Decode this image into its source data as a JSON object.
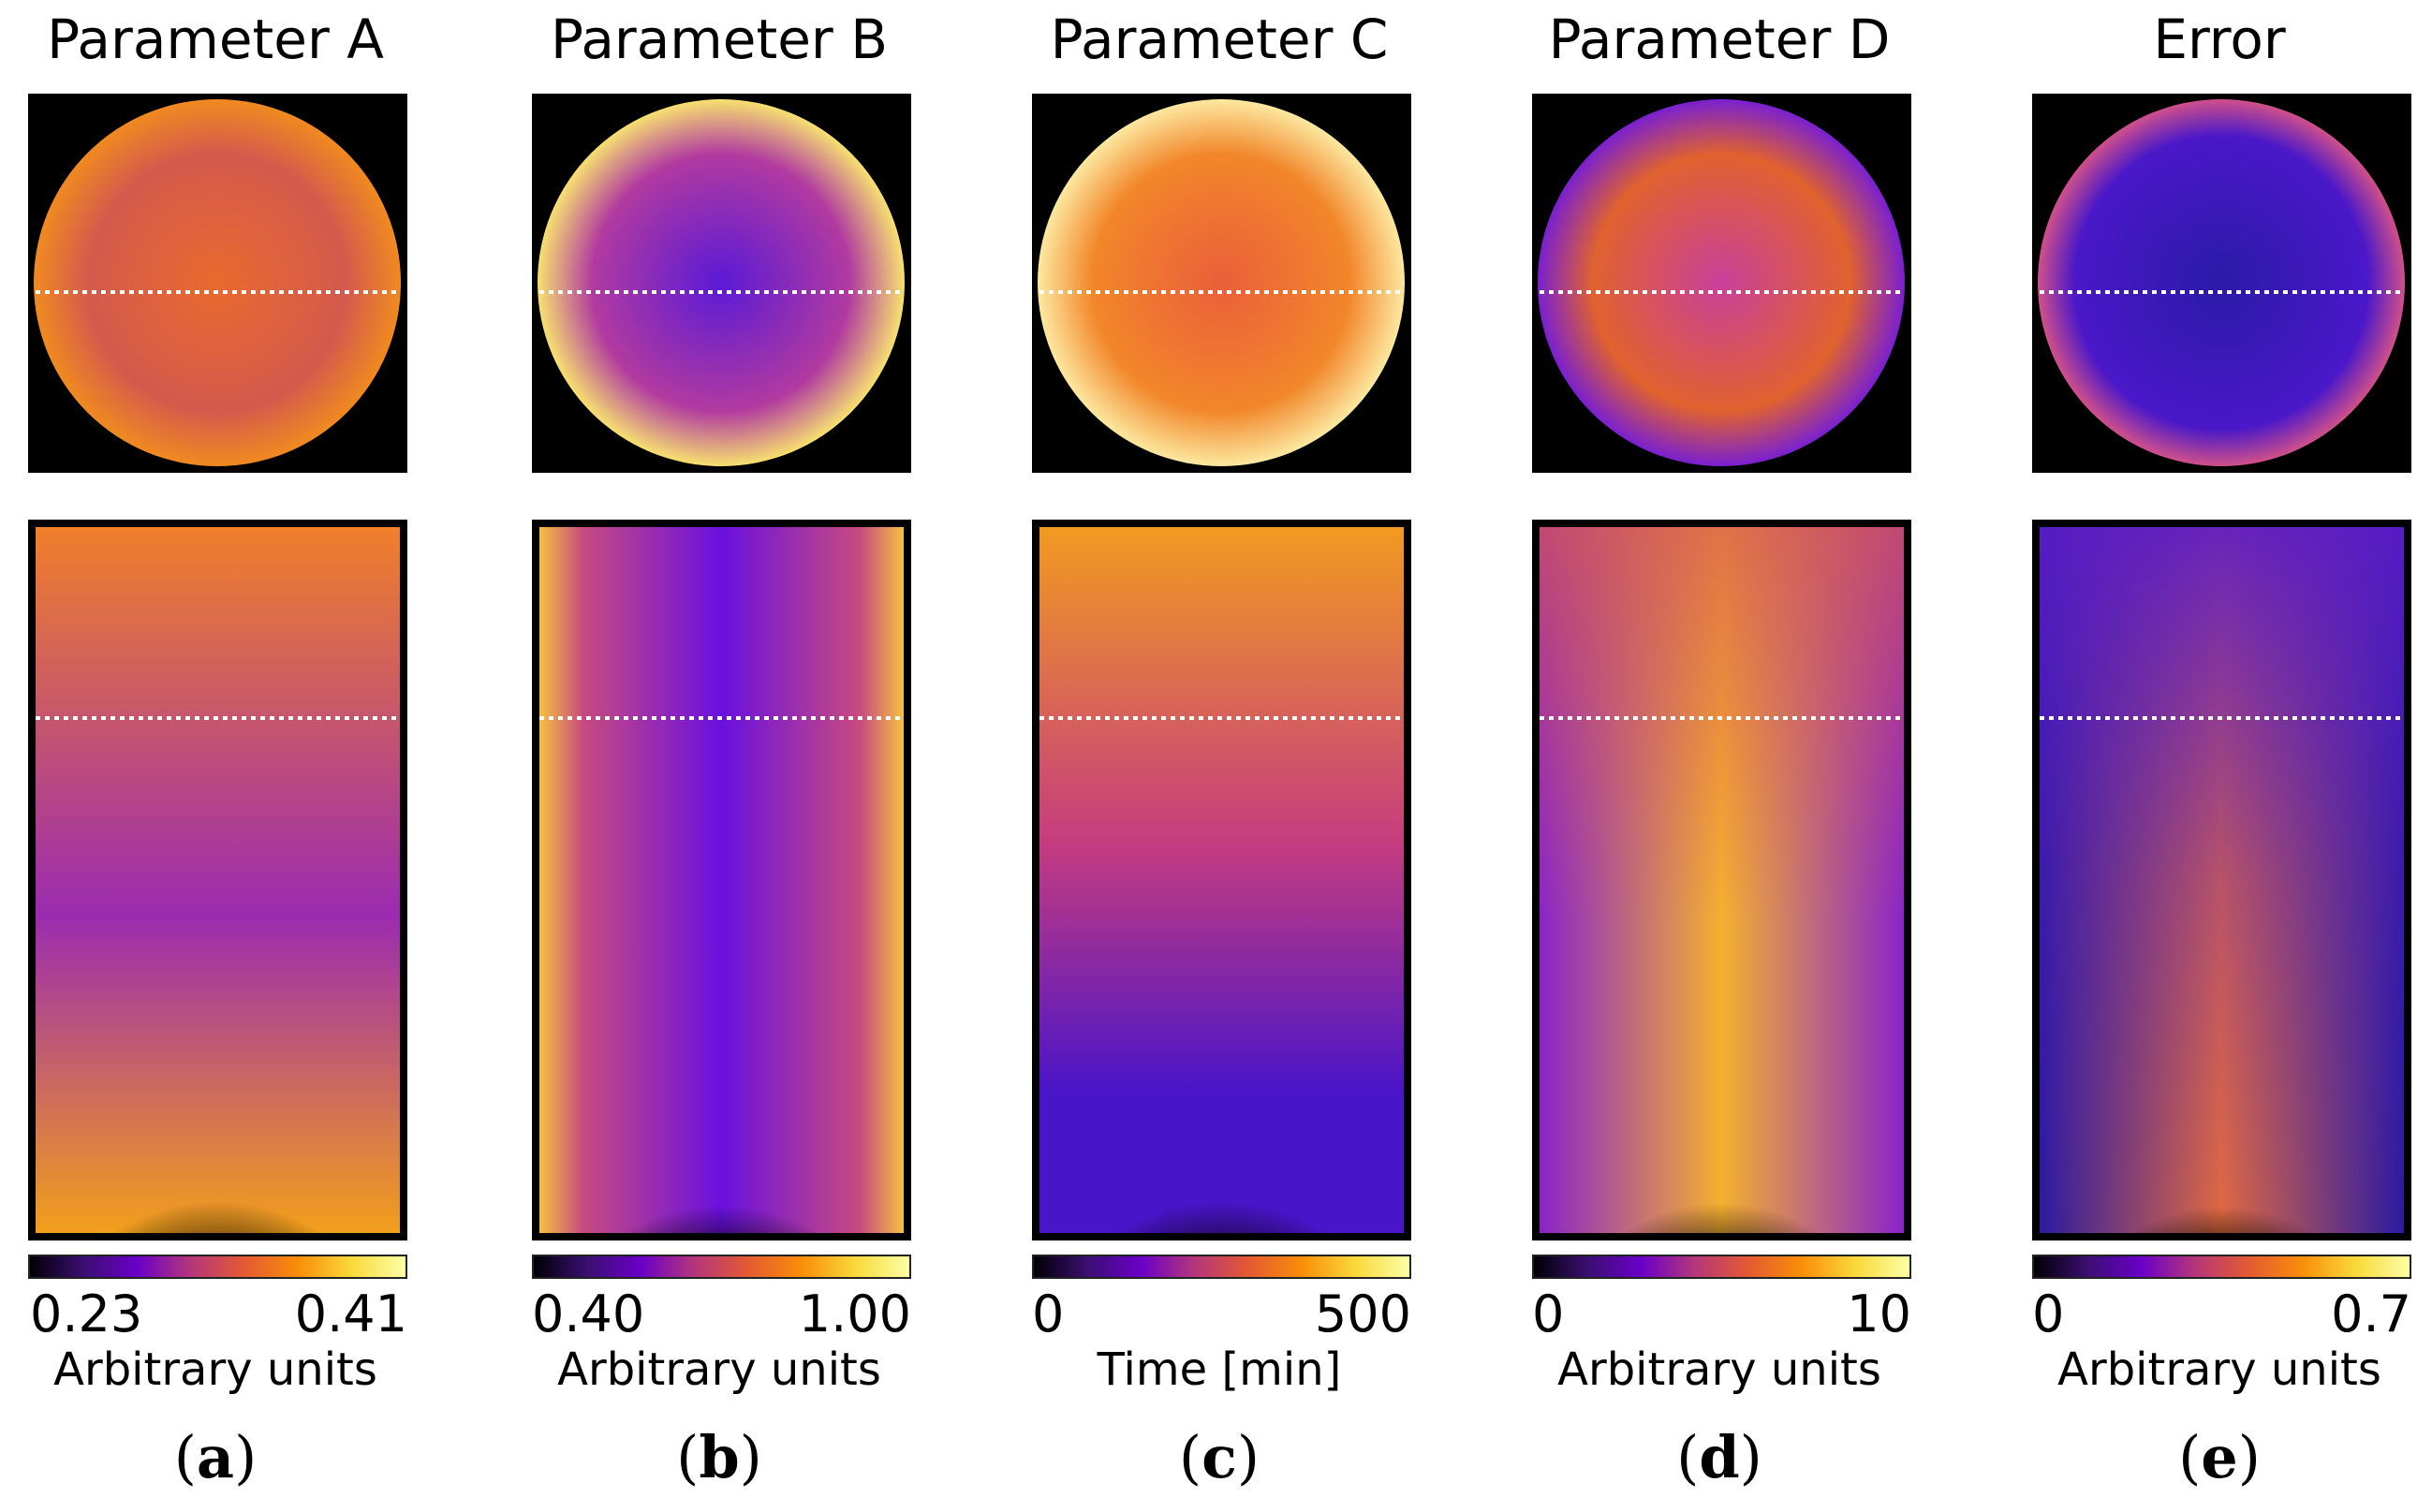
{
  "colormap": [
    "#000004",
    "#3b0f70",
    "#6a00c8",
    "#b5367a",
    "#e45a31",
    "#f98e09",
    "#f9d93a",
    "#fcffa4"
  ],
  "panels": [
    {
      "title": "Parameter A",
      "cbar_min": "0.23",
      "cbar_max": "0.41",
      "unit": "Arbitrary units",
      "label_open": "(",
      "label_letter": "a",
      "label_close": ")",
      "top_colors": [
        "#e86a2e",
        "#d35a4d",
        "#f08a20"
      ],
      "bottom_colors": [
        "#f0802a",
        "#9b2bb0",
        "#f29f1c"
      ]
    },
    {
      "title": "Parameter B",
      "cbar_min": "0.40",
      "cbar_max": "1.00",
      "unit": "Arbitrary units",
      "label_open": "(",
      "label_letter": "b",
      "label_close": ")",
      "top_colors": [
        "#5b1ad6",
        "#b13aa0",
        "#f7e070"
      ],
      "bottom_colors": [
        "#6a10e0",
        "#c74a80",
        "#f5c040"
      ]
    },
    {
      "title": "Parameter C",
      "cbar_min": "0",
      "cbar_max": "500",
      "unit": "Time [min]",
      "label_open": "(",
      "label_letter": "c",
      "label_close": ")",
      "top_colors": [
        "#ea5f3a",
        "#f2862a",
        "#fce8a0"
      ],
      "bottom_colors": [
        "#f29a20",
        "#c43c80",
        "#4a14c8"
      ]
    },
    {
      "title": "Parameter D",
      "cbar_min": "0",
      "cbar_max": "10",
      "unit": "Arbitrary units",
      "label_open": "(",
      "label_letter": "d",
      "label_close": ")",
      "top_colors": [
        "#c8409a",
        "#e0622e",
        "#7a20d0"
      ],
      "bottom_colors": [
        "#d85850",
        "#8a24c8",
        "#f5b030"
      ]
    },
    {
      "title": "Error",
      "cbar_min": "0",
      "cbar_max": "0.7",
      "unit": "Arbitrary units",
      "label_open": "(",
      "label_letter": "e",
      "label_close": ")",
      "top_colors": [
        "#2a1aa8",
        "#4a18c8",
        "#d0508a"
      ],
      "bottom_colors": [
        "#2c1aa0",
        "#5a1cc8",
        "#e06a40"
      ]
    }
  ]
}
